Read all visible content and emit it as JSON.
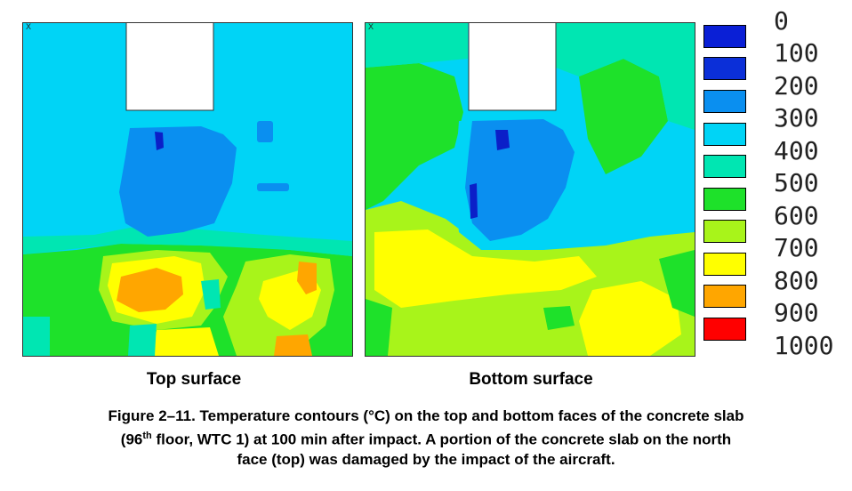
{
  "panels": {
    "top_label": "Top surface",
    "bottom_label": "Bottom surface",
    "axis_marker": "X"
  },
  "legend": {
    "labels": [
      "0",
      "100",
      "200",
      "300",
      "400",
      "500",
      "600",
      "700",
      "800",
      "900",
      "1000"
    ],
    "colors": [
      "#0a1fd6",
      "#0b2fd8",
      "#0a8ff0",
      "#00d4f6",
      "#00e6b2",
      "#1ee12a",
      "#a8f41a",
      "#ffff00",
      "#ffa600",
      "#ff0000"
    ]
  },
  "caption": {
    "line1": "Figure 2–11.  Temperature contours (°C) on the top and bottom faces of the concrete slab",
    "line2_a": "(96",
    "line2_sup": "th",
    "line2_b": " floor, WTC 1) at 100 min after impact.  A portion of the concrete slab on the north",
    "line3": "face (top) was damaged by the impact of the aircraft."
  }
}
